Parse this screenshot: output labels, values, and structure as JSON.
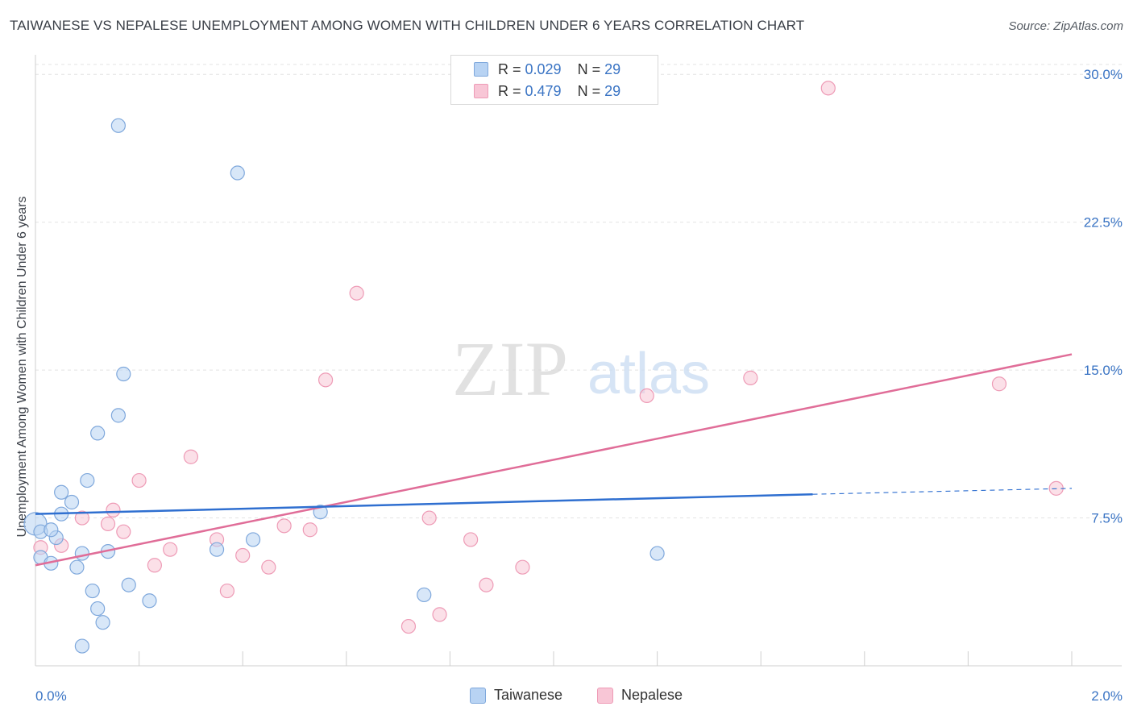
{
  "header": {
    "title": "TAIWANESE VS NEPALESE UNEMPLOYMENT AMONG WOMEN WITH CHILDREN UNDER 6 YEARS CORRELATION CHART",
    "source": "Source: ZipAtlas.com"
  },
  "watermark": {
    "zip": "ZIP",
    "atlas": "atlas"
  },
  "legend": {
    "taiwanese": {
      "r_label": "R = ",
      "r_value": "0.029",
      "n_label": "N = ",
      "n_value": "29"
    },
    "nepalese": {
      "r_label": "R = ",
      "r_value": "0.479",
      "n_label": "N = ",
      "n_value": "29"
    }
  },
  "colors": {
    "taiwanese_fill": "#b8d3f3",
    "taiwanese_stroke": "#7fa8dc",
    "taiwanese_line": "#2f6fd0",
    "nepalese_fill": "#f8c6d6",
    "nepalese_stroke": "#ee9bb6",
    "nepalese_line": "#e06d98",
    "tick_label": "#3a74c4",
    "grid": "#e3e3e3"
  },
  "chart_data": {
    "type": "scatter",
    "ylabel": "Unemployment Among Women with Children Under 6 years",
    "xlim": [
      0,
      2.0
    ],
    "ylim": [
      0,
      30.5
    ],
    "x_tick_labels": [
      {
        "value": 0.0,
        "label": "0.0%"
      },
      {
        "value": 2.0,
        "label": "2.0%"
      }
    ],
    "y_tick_labels": [
      {
        "value": 7.5,
        "label": "7.5%"
      },
      {
        "value": 15.0,
        "label": "15.0%"
      },
      {
        "value": 22.5,
        "label": "22.5%"
      },
      {
        "value": 30.0,
        "label": "30.0%"
      }
    ],
    "y_gridlines": [
      7.5,
      15.0,
      22.5,
      30.0
    ],
    "x_minor_ticks": [
      0.2,
      0.4,
      0.6,
      0.8,
      1.0,
      1.2,
      1.4,
      1.6,
      1.8,
      2.0
    ],
    "grid": true,
    "legend_position": "top-center",
    "series": [
      {
        "name": "Taiwanese",
        "points": [
          [
            0.0,
            7.2
          ],
          [
            0.01,
            6.8
          ],
          [
            0.01,
            5.5
          ],
          [
            0.03,
            5.2
          ],
          [
            0.04,
            6.5
          ],
          [
            0.05,
            7.7
          ],
          [
            0.05,
            8.8
          ],
          [
            0.07,
            8.3
          ],
          [
            0.08,
            5.0
          ],
          [
            0.09,
            5.7
          ],
          [
            0.1,
            9.4
          ],
          [
            0.11,
            3.8
          ],
          [
            0.12,
            11.8
          ],
          [
            0.12,
            2.9
          ],
          [
            0.13,
            2.2
          ],
          [
            0.14,
            5.8
          ],
          [
            0.16,
            27.4
          ],
          [
            0.16,
            12.7
          ],
          [
            0.17,
            14.8
          ],
          [
            0.18,
            4.1
          ],
          [
            0.22,
            3.3
          ],
          [
            0.35,
            5.9
          ],
          [
            0.39,
            25.0
          ],
          [
            0.42,
            6.4
          ],
          [
            0.55,
            7.8
          ],
          [
            0.75,
            3.6
          ],
          [
            1.2,
            5.7
          ],
          [
            0.09,
            1.0
          ],
          [
            0.03,
            6.9
          ]
        ],
        "trend": {
          "x": [
            0.0,
            1.5
          ],
          "y": [
            7.7,
            8.7
          ]
        },
        "trend_extension": {
          "x": [
            1.5,
            2.0
          ],
          "y": [
            8.7,
            9.0
          ]
        }
      },
      {
        "name": "Nepalese",
        "points": [
          [
            0.01,
            6.0
          ],
          [
            0.05,
            6.1
          ],
          [
            0.09,
            7.5
          ],
          [
            0.14,
            7.2
          ],
          [
            0.15,
            7.9
          ],
          [
            0.17,
            6.8
          ],
          [
            0.2,
            9.4
          ],
          [
            0.23,
            5.1
          ],
          [
            0.26,
            5.9
          ],
          [
            0.3,
            10.6
          ],
          [
            0.35,
            6.4
          ],
          [
            0.37,
            3.8
          ],
          [
            0.4,
            5.6
          ],
          [
            0.45,
            5.0
          ],
          [
            0.48,
            7.1
          ],
          [
            0.53,
            6.9
          ],
          [
            0.56,
            14.5
          ],
          [
            0.62,
            18.9
          ],
          [
            0.72,
            2.0
          ],
          [
            0.76,
            7.5
          ],
          [
            0.78,
            2.6
          ],
          [
            0.84,
            6.4
          ],
          [
            0.87,
            4.1
          ],
          [
            0.94,
            5.0
          ],
          [
            1.18,
            13.7
          ],
          [
            1.38,
            14.6
          ],
          [
            1.53,
            29.3
          ],
          [
            1.86,
            14.3
          ],
          [
            1.97,
            9.0
          ]
        ],
        "trend": {
          "x": [
            0.0,
            2.0
          ],
          "y": [
            5.1,
            15.8
          ]
        }
      }
    ]
  }
}
